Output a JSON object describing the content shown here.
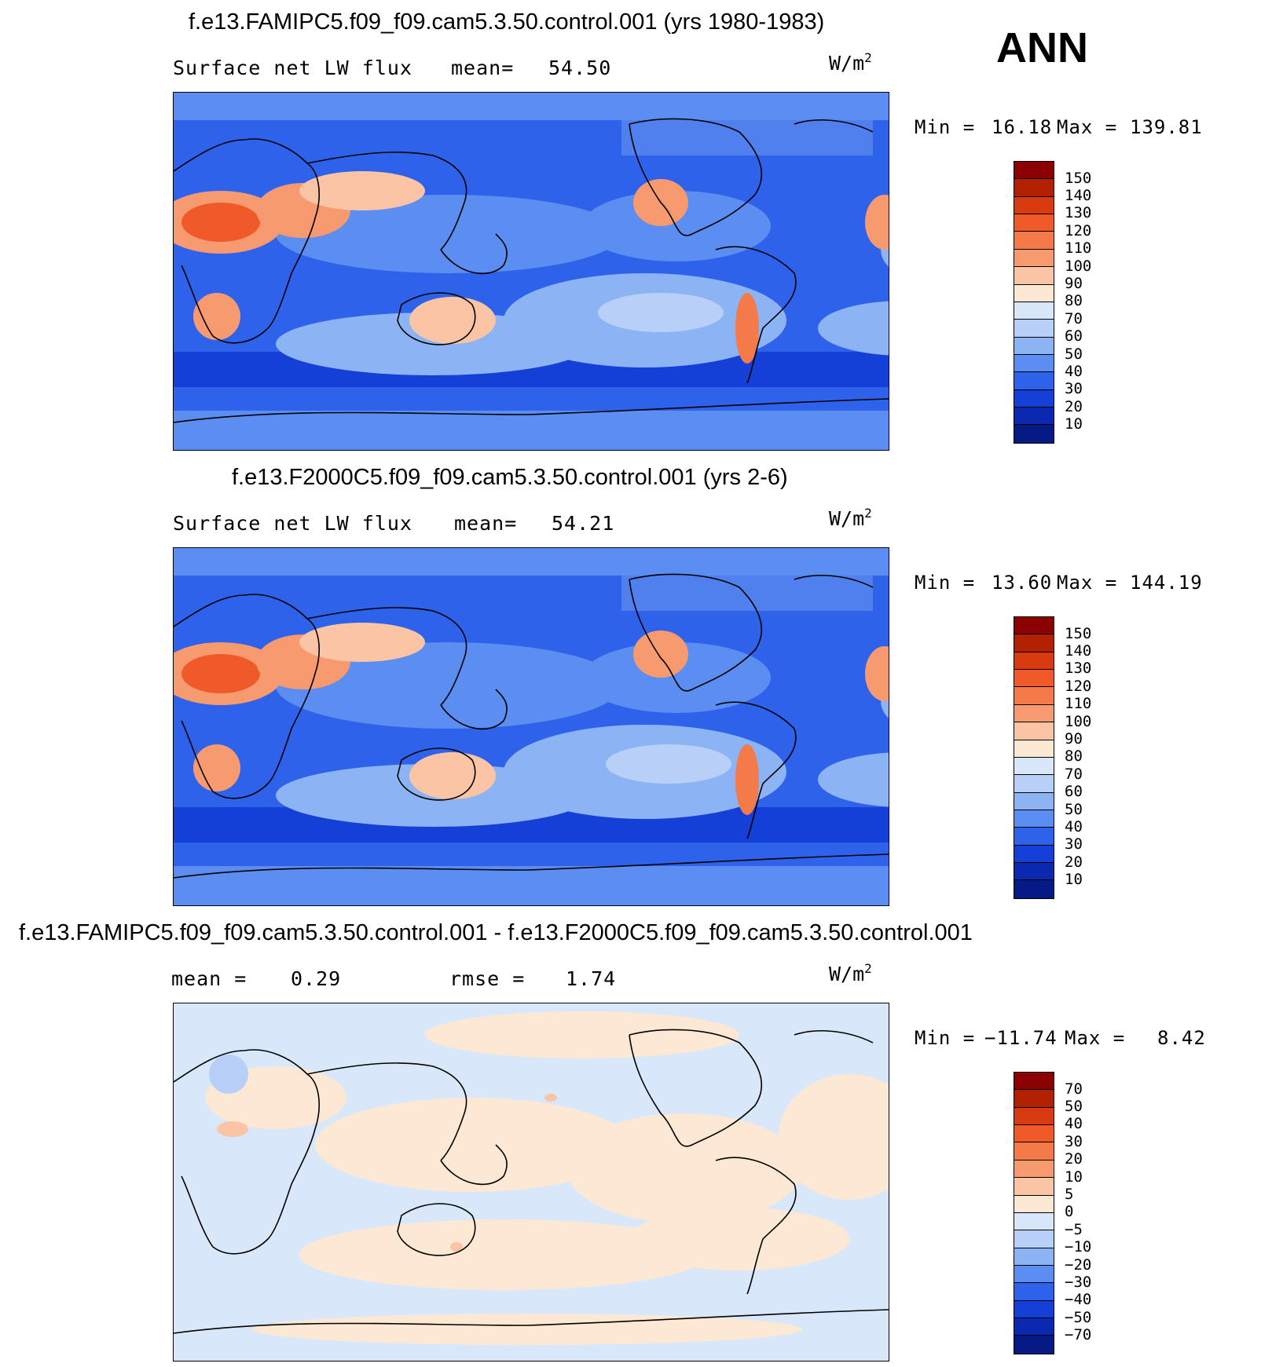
{
  "season": "ANN",
  "units": "W/m",
  "units_sup": "2",
  "panels": [
    {
      "title": "f.e13.FAMIPC5.f09_f09.cam5.3.50.control.001 (yrs 1980-1983)",
      "variable": "Surface net LW flux",
      "stat1_label": "mean=",
      "stat1_value": "54.50",
      "stat2_label": "",
      "stat2_value": "",
      "min_label": "Min =",
      "min_value": "16.18",
      "max_label": "Max =",
      "max_value": "139.81",
      "kind": "abs"
    },
    {
      "title": "f.e13.F2000C5.f09_f09.cam5.3.50.control.001 (yrs 2-6)",
      "variable": "Surface net LW flux",
      "stat1_label": "mean=",
      "stat1_value": "54.21",
      "stat2_label": "",
      "stat2_value": "",
      "min_label": "Min =",
      "min_value": "13.60",
      "max_label": "Max =",
      "max_value": "144.19",
      "kind": "abs"
    },
    {
      "title": "f.e13.FAMIPC5.f09_f09.cam5.3.50.control.001 - f.e13.F2000C5.f09_f09.cam5.3.50.control.001",
      "variable": "",
      "stat1_label": "mean =",
      "stat1_value": "0.29",
      "stat2_label": "rmse =",
      "stat2_value": "1.74",
      "min_label": "Min =",
      "min_value": "−11.74",
      "max_label": "Max =",
      "max_value": "8.42",
      "kind": "diff"
    }
  ],
  "colorbar_abs": {
    "labels": [
      "150",
      "140",
      "130",
      "120",
      "110",
      "100",
      "90",
      "80",
      "70",
      "60",
      "50",
      "40",
      "30",
      "20",
      "10"
    ],
    "colors": [
      "#8b0000",
      "#b22200",
      "#d83b10",
      "#f05a28",
      "#f57a4a",
      "#f79a70",
      "#fbc4a4",
      "#fde8d4",
      "#d8e8fa",
      "#b8d0f8",
      "#8cb4f5",
      "#5c8df0",
      "#2f62ea",
      "#1440d8",
      "#0a28b0",
      "#051a85"
    ]
  },
  "colorbar_diff": {
    "labels": [
      "70",
      "50",
      "40",
      "30",
      "20",
      "10",
      "5",
      "0",
      "−5",
      "−10",
      "−20",
      "−30",
      "−40",
      "−50",
      "−70"
    ],
    "colors": [
      "#8b0000",
      "#b22200",
      "#d83b10",
      "#f05a28",
      "#f57a4a",
      "#f79a70",
      "#fbc4a4",
      "#fde8d4",
      "#d8e8fa",
      "#b8d0f8",
      "#8cb4f5",
      "#5c8df0",
      "#2f62ea",
      "#1440d8",
      "#0a28b0",
      "#051a85"
    ]
  }
}
